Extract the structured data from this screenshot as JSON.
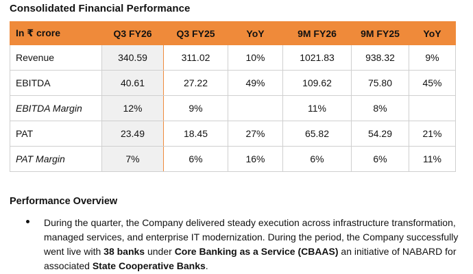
{
  "title": "Consolidated Financial Performance",
  "table": {
    "headers": [
      "In ₹ crore",
      "Q3 FY26",
      "Q3 FY25",
      "YoY",
      "9M FY26",
      "9M FY25",
      "YoY"
    ],
    "rows": [
      {
        "label": "Revenue",
        "italic": false,
        "cells": [
          "340.59",
          "311.02",
          "10%",
          "1021.83",
          "938.32",
          "9%"
        ]
      },
      {
        "label": "EBITDA",
        "italic": false,
        "cells": [
          "40.61",
          "27.22",
          "49%",
          "109.62",
          "75.80",
          "45%"
        ]
      },
      {
        "label": "EBITDA Margin",
        "italic": true,
        "cells": [
          "12%",
          "9%",
          "",
          "11%",
          "8%",
          ""
        ]
      },
      {
        "label": "PAT",
        "italic": false,
        "cells": [
          "23.49",
          "18.45",
          "27%",
          "65.82",
          "54.29",
          "21%"
        ]
      },
      {
        "label": "PAT Margin",
        "italic": true,
        "cells": [
          "7%",
          "6%",
          "16%",
          "6%",
          "6%",
          "11%"
        ]
      }
    ]
  },
  "overview": {
    "heading": "Performance Overview",
    "bullet": {
      "t1": "During the quarter, the Company delivered steady execution across infrastructure transformation, managed services, and enterprise IT modernization.  During the period, the Company successfully went live with ",
      "b1": "38 banks",
      "t2": " under ",
      "b2": "Core Banking as a Service (CBAAS)",
      "t3": " an initiative of NABARD for associated ",
      "b3": "State Cooperative Banks",
      "t4": "."
    }
  },
  "colors": {
    "header_bg": "#ef8a3a",
    "highlight_col_bg": "#f0f0f0"
  }
}
